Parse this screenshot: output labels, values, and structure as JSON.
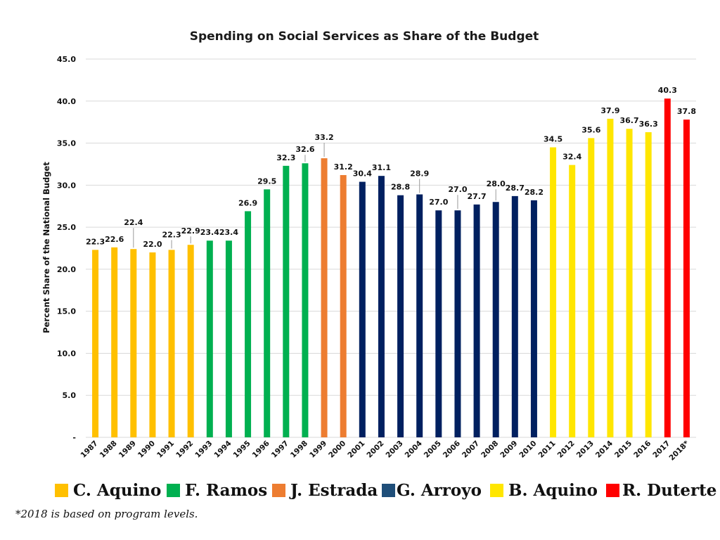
{
  "chart_data": {
    "type": "bar",
    "title": "Spending on Social Services as Share of the Budget",
    "xlabel": "",
    "ylabel": "Percent Share of the National Budget",
    "ylim": [
      0,
      45
    ],
    "yticks": [
      "-",
      "5.0",
      "10.0",
      "15.0",
      "20.0",
      "25.0",
      "30.0",
      "35.0",
      "40.0",
      "45.0"
    ],
    "ytick_values": [
      0,
      5,
      10,
      15,
      20,
      25,
      30,
      35,
      40,
      45
    ],
    "grid": true,
    "categories": [
      "1987",
      "1988",
      "1989",
      "1990",
      "1991",
      "1992",
      "1993",
      "1994",
      "1995",
      "1996",
      "1997",
      "1998",
      "1999",
      "2000",
      "2001",
      "2002",
      "2003",
      "2004",
      "2005",
      "2006",
      "2007",
      "2008",
      "2009",
      "2010",
      "2011",
      "2012",
      "2013",
      "2014",
      "2015",
      "2016",
      "2017",
      "2018*"
    ],
    "values": [
      22.3,
      22.6,
      22.4,
      22.0,
      22.3,
      22.9,
      23.4,
      23.4,
      26.9,
      29.5,
      32.3,
      32.6,
      33.2,
      31.2,
      30.4,
      31.1,
      28.8,
      28.9,
      27.0,
      27.0,
      27.7,
      28.0,
      28.7,
      28.2,
      34.5,
      32.4,
      35.6,
      37.9,
      36.7,
      36.3,
      40.3,
      37.8
    ],
    "labels": [
      "22.3",
      "22.6",
      "22.4",
      "22.0",
      "22.3",
      "22.9",
      "23.4",
      "23.4",
      "26.9",
      "29.5",
      "32.3",
      "32.6",
      "33.2",
      "31.2",
      "30.4",
      "31.1",
      "28.8",
      "28.9",
      "27.0",
      "27.0",
      "27.7",
      "28.0",
      "28.7",
      "28.2",
      "34.5",
      "32.4",
      "35.6",
      "37.9",
      "36.7",
      "36.3",
      "40.3",
      "37.8"
    ],
    "series_group": [
      0,
      0,
      0,
      0,
      0,
      0,
      1,
      1,
      1,
      1,
      1,
      1,
      2,
      2,
      3,
      3,
      3,
      3,
      3,
      3,
      3,
      3,
      3,
      3,
      4,
      4,
      4,
      4,
      4,
      4,
      5,
      5
    ],
    "groups": [
      {
        "name": "C. Aquino",
        "color": "#FFC000"
      },
      {
        "name": "F. Ramos",
        "color": "#00B050"
      },
      {
        "name": "J. Estrada",
        "color": "#ED7D31"
      },
      {
        "name": "G. Arroyo",
        "color": "#002060"
      },
      {
        "name": "B. Aquino",
        "color": "#FFE600"
      },
      {
        "name": "R. Duterte",
        "color": "#FF0000"
      }
    ],
    "legend_position": "bottom",
    "legend_swatch_colors": [
      "#FFC000",
      "#00B050",
      "#ED7D31",
      "#1F4E79",
      "#FFE600",
      "#FF0000"
    ]
  },
  "footnote": "*2018 is based on program levels."
}
